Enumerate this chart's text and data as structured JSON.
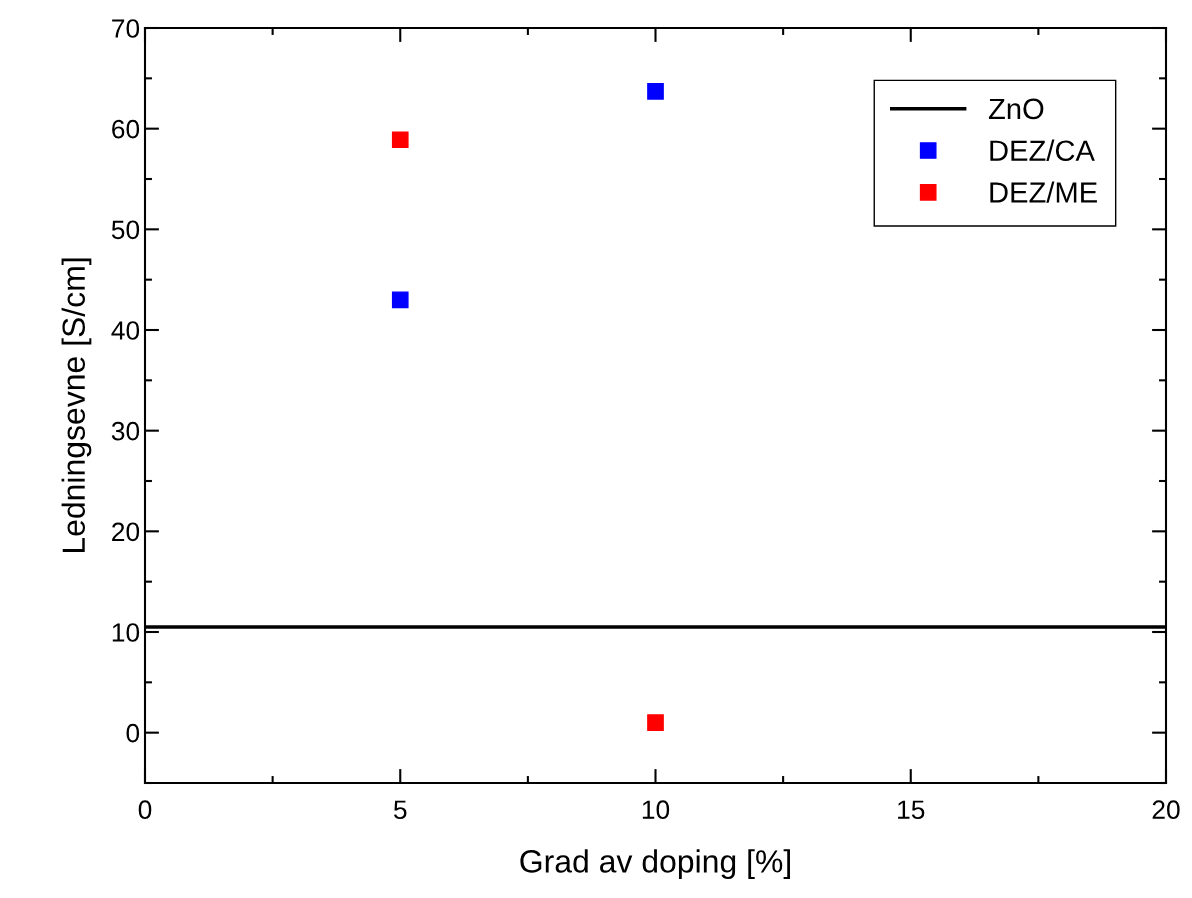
{
  "chart_data": {
    "type": "scatter",
    "xlabel": "Grad av doping [%]",
    "ylabel": "Ledningsevne [S/cm]",
    "xlim": [
      0,
      20
    ],
    "xticks": [
      0,
      5,
      10,
      15,
      20
    ],
    "ylim": [
      -5,
      70
    ],
    "yticks": [
      0,
      10,
      20,
      30,
      40,
      50,
      60,
      70
    ],
    "grid": false,
    "legend": "top right",
    "series": [
      {
        "name": "ZnO",
        "type": "line",
        "color": "#000000",
        "x": [
          0,
          20
        ],
        "values": [
          10.5,
          10.5
        ]
      },
      {
        "name": "DEZ/CA",
        "color": "#0000ff",
        "marker": "square",
        "x": [
          5,
          10
        ],
        "values": [
          43,
          63.7
        ]
      },
      {
        "name": "DEZ/ME",
        "color": "#ff0000",
        "marker": "square",
        "x": [
          5,
          10
        ],
        "values": [
          58.9,
          1
        ]
      }
    ]
  }
}
